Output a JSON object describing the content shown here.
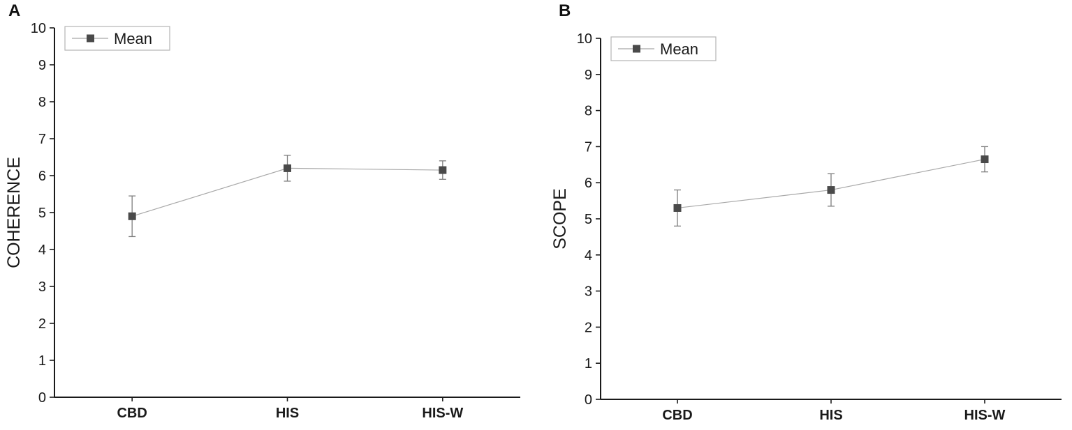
{
  "chart_data": [
    {
      "type": "line",
      "panel_label": "A",
      "title": "",
      "xlabel": "",
      "ylabel": "COHERENCE",
      "categories": [
        "CBD",
        "HIS",
        "HIS-W"
      ],
      "series": [
        {
          "name": "Mean",
          "values": [
            4.9,
            6.2,
            6.15
          ],
          "errors": [
            0.55,
            0.35,
            0.25
          ]
        }
      ],
      "ylim": [
        0,
        10
      ],
      "ytick_interval": 1,
      "grid": false,
      "legend_position": "top-left",
      "marker": "filled-square"
    },
    {
      "type": "line",
      "panel_label": "B",
      "title": "",
      "xlabel": "",
      "ylabel": "SCOPE",
      "categories": [
        "CBD",
        "HIS",
        "HIS-W"
      ],
      "series": [
        {
          "name": "Mean",
          "values": [
            5.3,
            5.8,
            6.65
          ],
          "errors": [
            0.5,
            0.45,
            0.35
          ]
        }
      ],
      "ylim": [
        0,
        10
      ],
      "ytick_interval": 1,
      "grid": false,
      "legend_position": "top-left",
      "marker": "filled-square"
    }
  ],
  "style": {
    "background": "#ffffff",
    "axis_color": "#1a1a1a",
    "text_color": "#1a1a1a",
    "marker_color": "#4a4a4a",
    "line_color": "#a8a8a8",
    "error_bar_color": "#7d7d7d",
    "legend_border_color": "#b5b5b5"
  }
}
